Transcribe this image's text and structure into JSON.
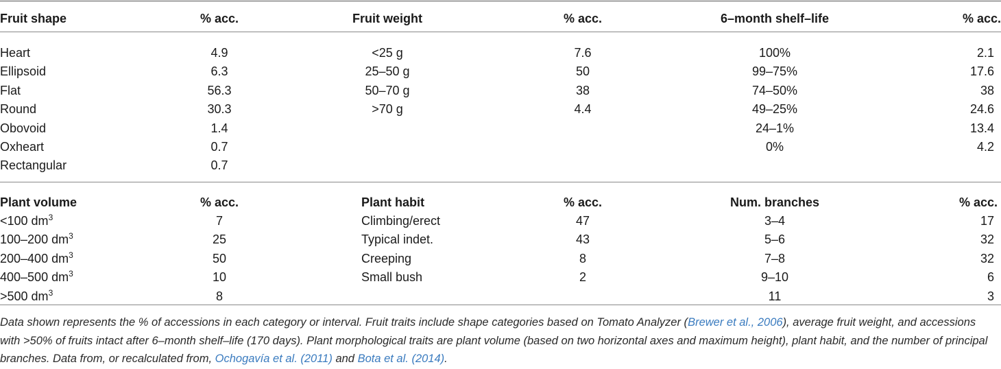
{
  "top_table": {
    "headers": [
      "Fruit shape",
      "% acc.",
      "Fruit weight",
      "% acc.",
      "6–month shelf–life",
      "% acc."
    ],
    "rows": [
      [
        "Heart",
        "4.9",
        "<25 g",
        "7.6",
        "100%",
        "2.1"
      ],
      [
        "Ellipsoid",
        "6.3",
        "25–50 g",
        "50",
        "99–75%",
        "17.6"
      ],
      [
        "Flat",
        "56.3",
        "50–70 g",
        "38",
        "74–50%",
        "38"
      ],
      [
        "Round",
        "30.3",
        ">70 g",
        "4.4",
        "49–25%",
        "24.6"
      ],
      [
        "Obovoid",
        "1.4",
        "",
        "",
        "24–1%",
        "13.4"
      ],
      [
        "Oxheart",
        "0.7",
        "",
        "",
        "0%",
        "4.2"
      ],
      [
        "Rectangular",
        "0.7",
        "",
        "",
        "",
        ""
      ]
    ]
  },
  "bottom_table": {
    "headers": [
      "Plant volume",
      "% acc.",
      "Plant habit",
      "% acc.",
      "Num. branches",
      "% acc."
    ],
    "rows": [
      [
        {
          "base": "<100 dm",
          "sup": "3"
        },
        "7",
        "Climbing/erect",
        "47",
        "3–4",
        "17"
      ],
      [
        {
          "base": "100–200 dm",
          "sup": "3"
        },
        "25",
        "Typical indet.",
        "43",
        "5–6",
        "32"
      ],
      [
        {
          "base": "200–400 dm",
          "sup": "3"
        },
        "50",
        "Creeping",
        "8",
        "7–8",
        "32"
      ],
      [
        {
          "base": "400–500 dm",
          "sup": "3"
        },
        "10",
        "Small bush",
        "2",
        "9–10",
        "6"
      ],
      [
        {
          "base": ">500 dm",
          "sup": "3"
        },
        "8",
        "",
        "",
        "11",
        "3"
      ]
    ]
  },
  "footnote": {
    "p1": "Data shown represents the % of accessions in each category or interval. Fruit traits include shape categories based on Tomato Analyzer (",
    "ref1": "Brewer et al., 2006",
    "p2": "), average fruit weight, and accessions with >50% of fruits intact after 6–month shelf–life (170 days). Plant morphological traits are plant volume (based on two horizontal axes and maximum height), plant habit, and the number of principal branches. Data from, or recalculated from, ",
    "ref2": "Ochogavía et al. (2011)",
    "p3": " and ",
    "ref3": "Bota et al. (2014)",
    "p4": "."
  }
}
